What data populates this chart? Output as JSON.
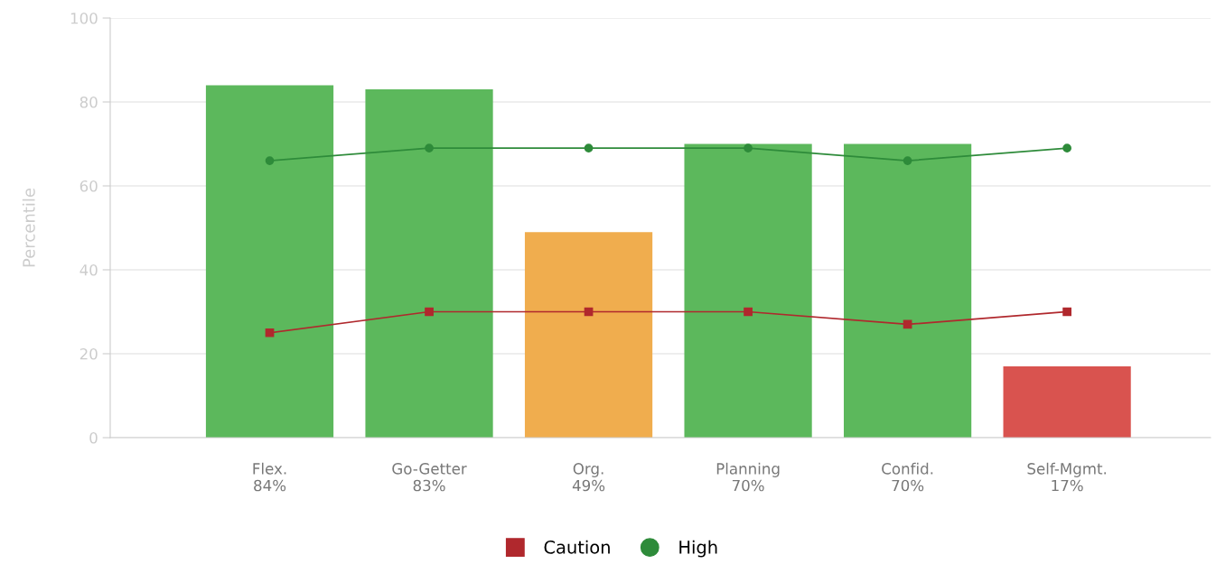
{
  "chart_data": {
    "type": "bar",
    "ylabel": "Percentile",
    "categories": [
      "Flex.\n84%",
      "Go-Getter\n83%",
      "Org.\n49%",
      "Planning\n70%",
      "Confid.\n70%",
      "Self-Mgmt.\n17%"
    ],
    "series": [
      {
        "colors": [
          "#5cb85c",
          "#5cb85c",
          "#f0ad4e",
          "#5cb85c",
          "#5cb85c",
          "#d9534f"
        ],
        "values": [
          84,
          83,
          49,
          70,
          70,
          17
        ]
      },
      {
        "type": "line",
        "name": "Caution",
        "color": "#b0282d",
        "marker": "square",
        "values": [
          25,
          30,
          30,
          30,
          27,
          30
        ]
      },
      {
        "type": "line",
        "name": "High",
        "color": "#2e8b3a",
        "marker": "circle",
        "values": [
          66,
          69,
          69,
          69,
          66,
          69
        ]
      }
    ],
    "ylim": [
      0,
      100
    ],
    "yticks": [
      0,
      20,
      40,
      60,
      80,
      100
    ],
    "grid": "y",
    "legend": "bottom"
  }
}
